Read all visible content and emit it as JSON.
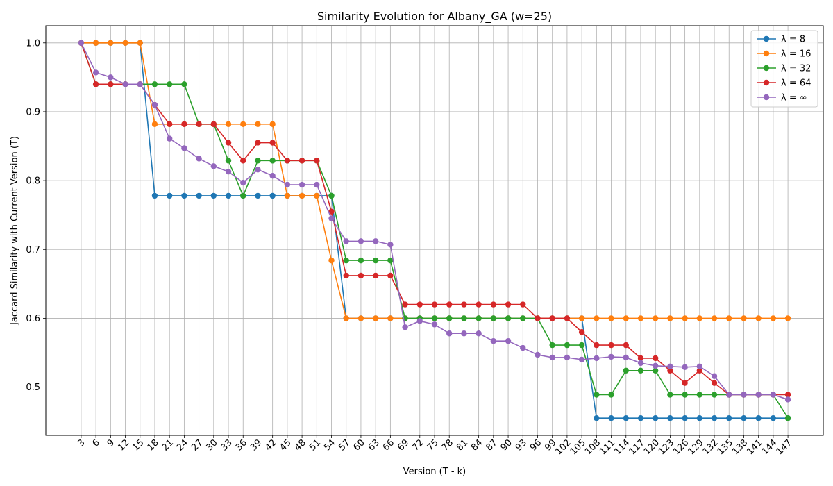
{
  "chart_data": {
    "type": "line",
    "title": "Similarity Evolution for Albany_GA (w=25)",
    "xlabel": "Version (T - k)",
    "ylabel": "Jaccard Similarity with Current Version (T)",
    "ylim": [
      0.43,
      1.025
    ],
    "yticks": [
      0.5,
      0.6,
      0.7,
      0.8,
      0.9,
      1.0
    ],
    "grid": true,
    "legend_position": "top-right",
    "x": [
      3,
      6,
      9,
      12,
      15,
      18,
      21,
      24,
      27,
      30,
      33,
      36,
      39,
      42,
      45,
      48,
      51,
      54,
      57,
      60,
      63,
      66,
      69,
      72,
      75,
      78,
      81,
      84,
      87,
      90,
      93,
      96,
      99,
      102,
      105,
      108,
      111,
      114,
      117,
      120,
      123,
      126,
      129,
      132,
      135,
      138,
      141,
      144,
      147
    ],
    "series": [
      {
        "name": "λ = 8",
        "color": "#1f77b4",
        "values": [
          1.0,
          1.0,
          1.0,
          1.0,
          1.0,
          0.778,
          0.778,
          0.778,
          0.778,
          0.778,
          0.778,
          0.778,
          0.778,
          0.778,
          0.778,
          0.778,
          0.778,
          0.778,
          0.6,
          0.6,
          0.6,
          0.6,
          0.6,
          0.6,
          0.6,
          0.6,
          0.6,
          0.6,
          0.6,
          0.6,
          0.6,
          0.6,
          0.6,
          0.6,
          0.6,
          0.455,
          0.455,
          0.455,
          0.455,
          0.455,
          0.455,
          0.455,
          0.455,
          0.455,
          0.455,
          0.455,
          0.455,
          0.455,
          0.455
        ]
      },
      {
        "name": "λ = 16",
        "color": "#ff7f0e",
        "values": [
          1.0,
          1.0,
          1.0,
          1.0,
          1.0,
          0.882,
          0.882,
          0.882,
          0.882,
          0.882,
          0.882,
          0.882,
          0.882,
          0.882,
          0.778,
          0.778,
          0.778,
          0.684,
          0.6,
          0.6,
          0.6,
          0.6,
          0.6,
          0.6,
          0.6,
          0.6,
          0.6,
          0.6,
          0.6,
          0.6,
          0.6,
          0.6,
          0.6,
          0.6,
          0.6,
          0.6,
          0.6,
          0.6,
          0.6,
          0.6,
          0.6,
          0.6,
          0.6,
          0.6,
          0.6,
          0.6,
          0.6,
          0.6,
          0.6
        ]
      },
      {
        "name": "λ = 32",
        "color": "#2ca02c",
        "values": [
          1.0,
          0.94,
          0.94,
          0.94,
          0.94,
          0.94,
          0.94,
          0.94,
          0.882,
          0.882,
          0.829,
          0.778,
          0.829,
          0.829,
          0.829,
          0.829,
          0.829,
          0.778,
          0.684,
          0.684,
          0.684,
          0.684,
          0.6,
          0.6,
          0.6,
          0.6,
          0.6,
          0.6,
          0.6,
          0.6,
          0.6,
          0.6,
          0.561,
          0.561,
          0.561,
          0.489,
          0.489,
          0.524,
          0.524,
          0.524,
          0.489,
          0.489,
          0.489,
          0.489,
          0.489,
          0.489,
          0.489,
          0.489,
          0.455
        ]
      },
      {
        "name": "λ = 64",
        "color": "#d62728",
        "values": [
          1.0,
          0.94,
          0.94,
          0.94,
          0.94,
          0.91,
          0.882,
          0.882,
          0.882,
          0.882,
          0.855,
          0.829,
          0.855,
          0.855,
          0.829,
          0.829,
          0.829,
          0.755,
          0.662,
          0.662,
          0.662,
          0.662,
          0.62,
          0.62,
          0.62,
          0.62,
          0.62,
          0.62,
          0.62,
          0.62,
          0.62,
          0.6,
          0.6,
          0.6,
          0.58,
          0.561,
          0.561,
          0.561,
          0.542,
          0.542,
          0.524,
          0.506,
          0.524,
          0.506,
          0.489,
          0.489,
          0.489,
          0.489,
          0.489
        ]
      },
      {
        "name": "λ = ∞",
        "color": "#9467bd",
        "values": [
          1.0,
          0.957,
          0.95,
          0.94,
          0.94,
          0.91,
          0.861,
          0.847,
          0.832,
          0.821,
          0.813,
          0.797,
          0.816,
          0.807,
          0.794,
          0.794,
          0.794,
          0.745,
          0.712,
          0.712,
          0.712,
          0.707,
          0.587,
          0.596,
          0.591,
          0.578,
          0.578,
          0.578,
          0.567,
          0.567,
          0.557,
          0.547,
          0.543,
          0.543,
          0.54,
          0.542,
          0.544,
          0.543,
          0.535,
          0.531,
          0.53,
          0.529,
          0.53,
          0.516,
          0.489,
          0.489,
          0.489,
          0.489,
          0.482
        ]
      }
    ]
  }
}
